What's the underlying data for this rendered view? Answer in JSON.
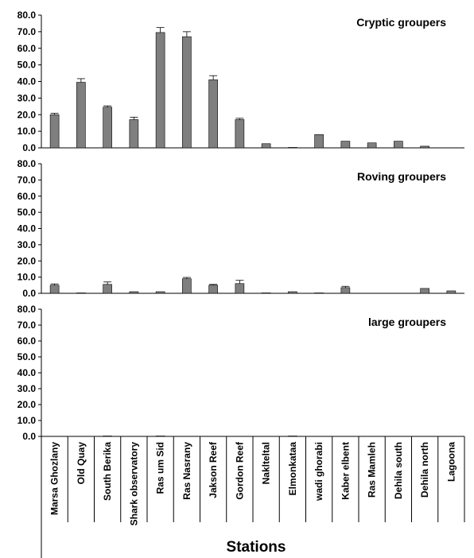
{
  "chart_data": {
    "type": "bar",
    "xlabel": "Stations",
    "categories": [
      "Marsa Ghozlany",
      "Old Quay",
      "South Berika",
      "Shark observatory",
      "Ras um Sid",
      "Ras Nasrany",
      "Jakson Reef",
      "Gordon Reef",
      "Naklteltal",
      "Elmonkataa",
      "wadi ghorabi",
      "Kaber elbent",
      "Ras Mamleh",
      "Dehila south",
      "Dehila north",
      "Lagoona"
    ],
    "colors": {
      "bar_fill": "#7f7f7f",
      "bar_stroke": "#000000"
    },
    "panels": [
      {
        "title": "Cryptic groupers",
        "ylim": [
          0,
          80
        ],
        "ticks": [
          "0.0",
          "10.0",
          "20.0",
          "30.0",
          "40.0",
          "50.0",
          "60.0",
          "70.0",
          "80.0"
        ],
        "values": [
          20.0,
          39.5,
          24.5,
          17.0,
          69.5,
          67.0,
          41.0,
          17.0,
          2.5,
          0.3,
          8.0,
          4.0,
          3.0,
          4.0,
          1.0,
          0
        ],
        "errors": [
          0.8,
          2.2,
          0.8,
          1.5,
          3.0,
          3.0,
          2.5,
          0.8,
          0,
          0,
          0,
          0,
          0,
          0,
          0,
          0
        ]
      },
      {
        "title": "Roving groupers",
        "ylim": [
          0,
          80
        ],
        "ticks": [
          "0.0",
          "10.0",
          "20.0",
          "30.0",
          "40.0",
          "50.0",
          "60.0",
          "70.0",
          "80.0"
        ],
        "values": [
          5.0,
          0.3,
          5.5,
          1.0,
          1.0,
          9.0,
          5.0,
          6.0,
          0.3,
          1.0,
          0.3,
          3.5,
          0,
          0,
          3.0,
          1.5
        ],
        "errors": [
          0.8,
          0,
          1.5,
          0,
          0,
          0.8,
          0.5,
          2.0,
          0,
          0,
          0,
          0.8,
          0,
          0,
          0,
          0
        ]
      },
      {
        "title": "large groupers",
        "ylim": [
          0,
          80
        ],
        "ticks": [
          "0.0",
          "10.0",
          "20.0",
          "30.0",
          "40.0",
          "50.0",
          "60.0",
          "70.0",
          "80.0"
        ],
        "values": [
          0,
          0,
          0.3,
          0,
          0.3,
          0,
          0,
          0,
          0,
          0.3,
          0,
          0,
          0,
          0,
          0,
          0
        ],
        "errors": [
          0,
          0,
          0,
          0,
          0,
          0,
          0,
          0,
          0,
          0,
          0,
          0,
          0,
          0,
          0,
          0
        ]
      }
    ]
  }
}
